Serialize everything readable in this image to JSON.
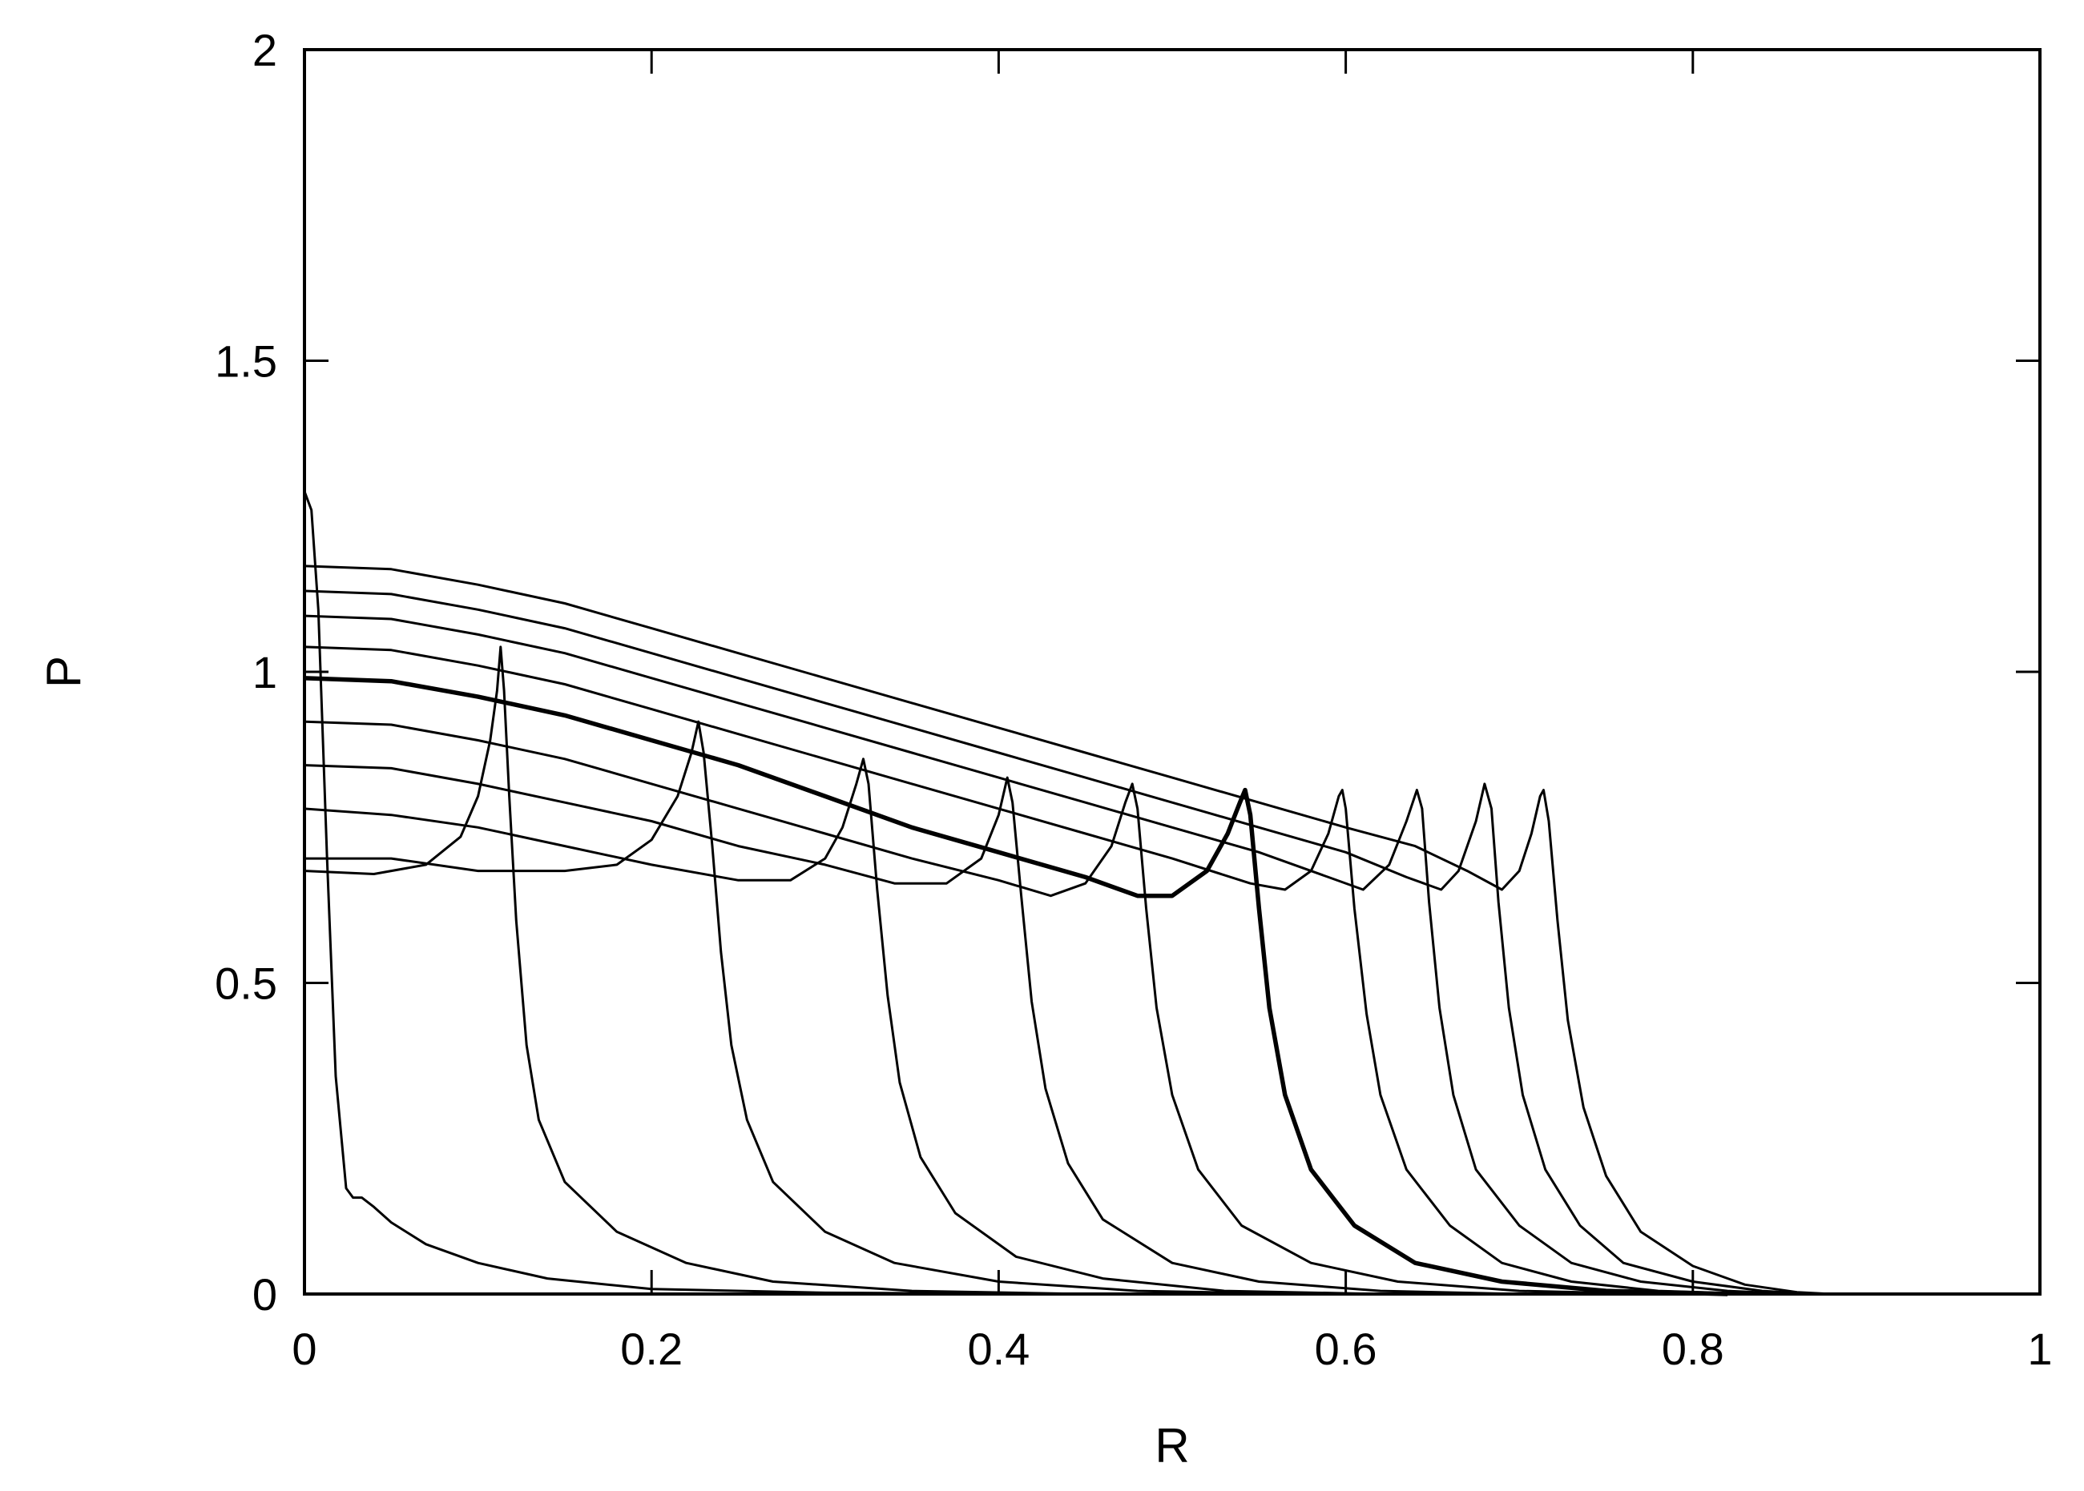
{
  "chart_data": {
    "type": "line",
    "title": "",
    "xlabel": "R",
    "ylabel": "P",
    "xlim": [
      0,
      1
    ],
    "ylim": [
      0,
      2
    ],
    "x_ticks": [
      "0",
      "0.2",
      "0.4",
      "0.6",
      "0.8",
      "1"
    ],
    "y_ticks": [
      "0",
      "0.5",
      "1",
      "1.5",
      "2"
    ],
    "grid": false,
    "legend": "none",
    "line_color": "#000000",
    "series": [
      {
        "bold": false,
        "points": [
          [
            0,
            1.29
          ],
          [
            0.004,
            1.26
          ],
          [
            0.008,
            1.1
          ],
          [
            0.013,
            0.7
          ],
          [
            0.018,
            0.35
          ],
          [
            0.024,
            0.17
          ],
          [
            0.028,
            0.155
          ],
          [
            0.033,
            0.155
          ],
          [
            0.04,
            0.14
          ],
          [
            0.05,
            0.115
          ],
          [
            0.07,
            0.08
          ],
          [
            0.1,
            0.05
          ],
          [
            0.14,
            0.025
          ],
          [
            0.2,
            0.008
          ],
          [
            0.3,
            0.002
          ],
          [
            0.45,
            0
          ]
        ]
      },
      {
        "bold": false,
        "points": [
          [
            0,
            0.68
          ],
          [
            0.04,
            0.675
          ],
          [
            0.07,
            0.69
          ],
          [
            0.09,
            0.735
          ],
          [
            0.1,
            0.8
          ],
          [
            0.107,
            0.89
          ],
          [
            0.111,
            0.97
          ],
          [
            0.113,
            1.04
          ],
          [
            0.115,
            0.97
          ],
          [
            0.118,
            0.8
          ],
          [
            0.122,
            0.6
          ],
          [
            0.128,
            0.4
          ],
          [
            0.135,
            0.28
          ],
          [
            0.15,
            0.18
          ],
          [
            0.18,
            0.1
          ],
          [
            0.22,
            0.05
          ],
          [
            0.27,
            0.02
          ],
          [
            0.35,
            0.005
          ],
          [
            0.45,
            0
          ]
        ]
      },
      {
        "bold": false,
        "points": [
          [
            0,
            0.7
          ],
          [
            0.05,
            0.7
          ],
          [
            0.1,
            0.68
          ],
          [
            0.15,
            0.68
          ],
          [
            0.18,
            0.69
          ],
          [
            0.2,
            0.73
          ],
          [
            0.215,
            0.8
          ],
          [
            0.223,
            0.87
          ],
          [
            0.227,
            0.92
          ],
          [
            0.23,
            0.87
          ],
          [
            0.235,
            0.72
          ],
          [
            0.24,
            0.55
          ],
          [
            0.246,
            0.4
          ],
          [
            0.255,
            0.28
          ],
          [
            0.27,
            0.18
          ],
          [
            0.3,
            0.1
          ],
          [
            0.34,
            0.05
          ],
          [
            0.4,
            0.02
          ],
          [
            0.48,
            0.005
          ],
          [
            0.58,
            0
          ]
        ]
      },
      {
        "bold": false,
        "points": [
          [
            0,
            0.78
          ],
          [
            0.05,
            0.77
          ],
          [
            0.1,
            0.75
          ],
          [
            0.15,
            0.72
          ],
          [
            0.2,
            0.69
          ],
          [
            0.25,
            0.665
          ],
          [
            0.28,
            0.665
          ],
          [
            0.3,
            0.7
          ],
          [
            0.31,
            0.75
          ],
          [
            0.318,
            0.82
          ],
          [
            0.322,
            0.86
          ],
          [
            0.325,
            0.82
          ],
          [
            0.33,
            0.65
          ],
          [
            0.336,
            0.48
          ],
          [
            0.343,
            0.34
          ],
          [
            0.355,
            0.22
          ],
          [
            0.375,
            0.13
          ],
          [
            0.41,
            0.06
          ],
          [
            0.46,
            0.025
          ],
          [
            0.53,
            0.005
          ],
          [
            0.62,
            0
          ]
        ]
      },
      {
        "bold": false,
        "points": [
          [
            0,
            0.85
          ],
          [
            0.05,
            0.845
          ],
          [
            0.1,
            0.82
          ],
          [
            0.15,
            0.79
          ],
          [
            0.2,
            0.76
          ],
          [
            0.25,
            0.72
          ],
          [
            0.3,
            0.69
          ],
          [
            0.34,
            0.66
          ],
          [
            0.37,
            0.66
          ],
          [
            0.39,
            0.7
          ],
          [
            0.4,
            0.77
          ],
          [
            0.405,
            0.83
          ],
          [
            0.408,
            0.79
          ],
          [
            0.413,
            0.64
          ],
          [
            0.419,
            0.47
          ],
          [
            0.427,
            0.33
          ],
          [
            0.44,
            0.21
          ],
          [
            0.46,
            0.12
          ],
          [
            0.5,
            0.05
          ],
          [
            0.55,
            0.02
          ],
          [
            0.62,
            0.005
          ],
          [
            0.7,
            0
          ]
        ]
      },
      {
        "bold": false,
        "points": [
          [
            0,
            0.92
          ],
          [
            0.05,
            0.915
          ],
          [
            0.1,
            0.89
          ],
          [
            0.15,
            0.86
          ],
          [
            0.2,
            0.82
          ],
          [
            0.25,
            0.78
          ],
          [
            0.3,
            0.74
          ],
          [
            0.35,
            0.7
          ],
          [
            0.4,
            0.665
          ],
          [
            0.43,
            0.64
          ],
          [
            0.45,
            0.66
          ],
          [
            0.465,
            0.72
          ],
          [
            0.473,
            0.79
          ],
          [
            0.477,
            0.82
          ],
          [
            0.48,
            0.78
          ],
          [
            0.485,
            0.62
          ],
          [
            0.491,
            0.46
          ],
          [
            0.5,
            0.32
          ],
          [
            0.515,
            0.2
          ],
          [
            0.54,
            0.11
          ],
          [
            0.58,
            0.05
          ],
          [
            0.63,
            0.02
          ],
          [
            0.7,
            0.005
          ],
          [
            0.78,
            0
          ]
        ]
      },
      {
        "bold": true,
        "points": [
          [
            0,
            0.99
          ],
          [
            0.05,
            0.985
          ],
          [
            0.1,
            0.96
          ],
          [
            0.15,
            0.93
          ],
          [
            0.2,
            0.89
          ],
          [
            0.25,
            0.85
          ],
          [
            0.3,
            0.8
          ],
          [
            0.35,
            0.75
          ],
          [
            0.4,
            0.71
          ],
          [
            0.45,
            0.67
          ],
          [
            0.48,
            0.64
          ],
          [
            0.5,
            0.64
          ],
          [
            0.52,
            0.68
          ],
          [
            0.532,
            0.74
          ],
          [
            0.539,
            0.79
          ],
          [
            0.542,
            0.81
          ],
          [
            0.545,
            0.77
          ],
          [
            0.55,
            0.62
          ],
          [
            0.556,
            0.46
          ],
          [
            0.565,
            0.32
          ],
          [
            0.58,
            0.2
          ],
          [
            0.605,
            0.11
          ],
          [
            0.64,
            0.05
          ],
          [
            0.69,
            0.02
          ],
          [
            0.75,
            0.005
          ],
          [
            0.82,
            0
          ]
        ]
      },
      {
        "bold": false,
        "points": [
          [
            0,
            1.04
          ],
          [
            0.05,
            1.035
          ],
          [
            0.1,
            1.01
          ],
          [
            0.15,
            0.98
          ],
          [
            0.2,
            0.94
          ],
          [
            0.25,
            0.9
          ],
          [
            0.3,
            0.86
          ],
          [
            0.35,
            0.82
          ],
          [
            0.4,
            0.78
          ],
          [
            0.45,
            0.74
          ],
          [
            0.5,
            0.7
          ],
          [
            0.545,
            0.66
          ],
          [
            0.565,
            0.65
          ],
          [
            0.58,
            0.68
          ],
          [
            0.59,
            0.74
          ],
          [
            0.596,
            0.8
          ],
          [
            0.598,
            0.81
          ],
          [
            0.6,
            0.78
          ],
          [
            0.605,
            0.62
          ],
          [
            0.612,
            0.45
          ],
          [
            0.62,
            0.32
          ],
          [
            0.635,
            0.2
          ],
          [
            0.66,
            0.11
          ],
          [
            0.69,
            0.05
          ],
          [
            0.73,
            0.02
          ],
          [
            0.78,
            0.005
          ],
          [
            0.84,
            0
          ]
        ]
      },
      {
        "bold": false,
        "points": [
          [
            0,
            1.09
          ],
          [
            0.05,
            1.085
          ],
          [
            0.1,
            1.06
          ],
          [
            0.15,
            1.03
          ],
          [
            0.2,
            0.99
          ],
          [
            0.25,
            0.95
          ],
          [
            0.3,
            0.91
          ],
          [
            0.35,
            0.87
          ],
          [
            0.4,
            0.83
          ],
          [
            0.45,
            0.79
          ],
          [
            0.5,
            0.75
          ],
          [
            0.55,
            0.71
          ],
          [
            0.59,
            0.67
          ],
          [
            0.61,
            0.65
          ],
          [
            0.625,
            0.69
          ],
          [
            0.635,
            0.76
          ],
          [
            0.641,
            0.81
          ],
          [
            0.644,
            0.78
          ],
          [
            0.648,
            0.63
          ],
          [
            0.654,
            0.46
          ],
          [
            0.662,
            0.32
          ],
          [
            0.675,
            0.2
          ],
          [
            0.7,
            0.11
          ],
          [
            0.73,
            0.05
          ],
          [
            0.77,
            0.02
          ],
          [
            0.82,
            0.005
          ],
          [
            0.86,
            0
          ]
        ]
      },
      {
        "bold": false,
        "points": [
          [
            0,
            1.13
          ],
          [
            0.05,
            1.125
          ],
          [
            0.1,
            1.1
          ],
          [
            0.15,
            1.07
          ],
          [
            0.2,
            1.03
          ],
          [
            0.25,
            0.99
          ],
          [
            0.3,
            0.95
          ],
          [
            0.35,
            0.91
          ],
          [
            0.4,
            0.87
          ],
          [
            0.45,
            0.83
          ],
          [
            0.5,
            0.79
          ],
          [
            0.55,
            0.75
          ],
          [
            0.6,
            0.71
          ],
          [
            0.635,
            0.67
          ],
          [
            0.655,
            0.65
          ],
          [
            0.665,
            0.68
          ],
          [
            0.675,
            0.76
          ],
          [
            0.68,
            0.82
          ],
          [
            0.684,
            0.78
          ],
          [
            0.688,
            0.63
          ],
          [
            0.694,
            0.46
          ],
          [
            0.702,
            0.32
          ],
          [
            0.715,
            0.2
          ],
          [
            0.735,
            0.11
          ],
          [
            0.76,
            0.05
          ],
          [
            0.8,
            0.02
          ],
          [
            0.84,
            0.005
          ],
          [
            0.87,
            0
          ]
        ]
      },
      {
        "bold": false,
        "points": [
          [
            0,
            1.17
          ],
          [
            0.05,
            1.165
          ],
          [
            0.1,
            1.14
          ],
          [
            0.15,
            1.11
          ],
          [
            0.2,
            1.07
          ],
          [
            0.25,
            1.03
          ],
          [
            0.3,
            0.99
          ],
          [
            0.35,
            0.95
          ],
          [
            0.4,
            0.91
          ],
          [
            0.45,
            0.87
          ],
          [
            0.5,
            0.83
          ],
          [
            0.55,
            0.79
          ],
          [
            0.6,
            0.75
          ],
          [
            0.64,
            0.72
          ],
          [
            0.67,
            0.68
          ],
          [
            0.69,
            0.65
          ],
          [
            0.7,
            0.68
          ],
          [
            0.707,
            0.74
          ],
          [
            0.712,
            0.8
          ],
          [
            0.714,
            0.81
          ],
          [
            0.717,
            0.76
          ],
          [
            0.722,
            0.6
          ],
          [
            0.728,
            0.44
          ],
          [
            0.737,
            0.3
          ],
          [
            0.75,
            0.19
          ],
          [
            0.77,
            0.1
          ],
          [
            0.8,
            0.045
          ],
          [
            0.83,
            0.015
          ],
          [
            0.86,
            0.003
          ],
          [
            0.88,
            0
          ]
        ]
      }
    ]
  }
}
